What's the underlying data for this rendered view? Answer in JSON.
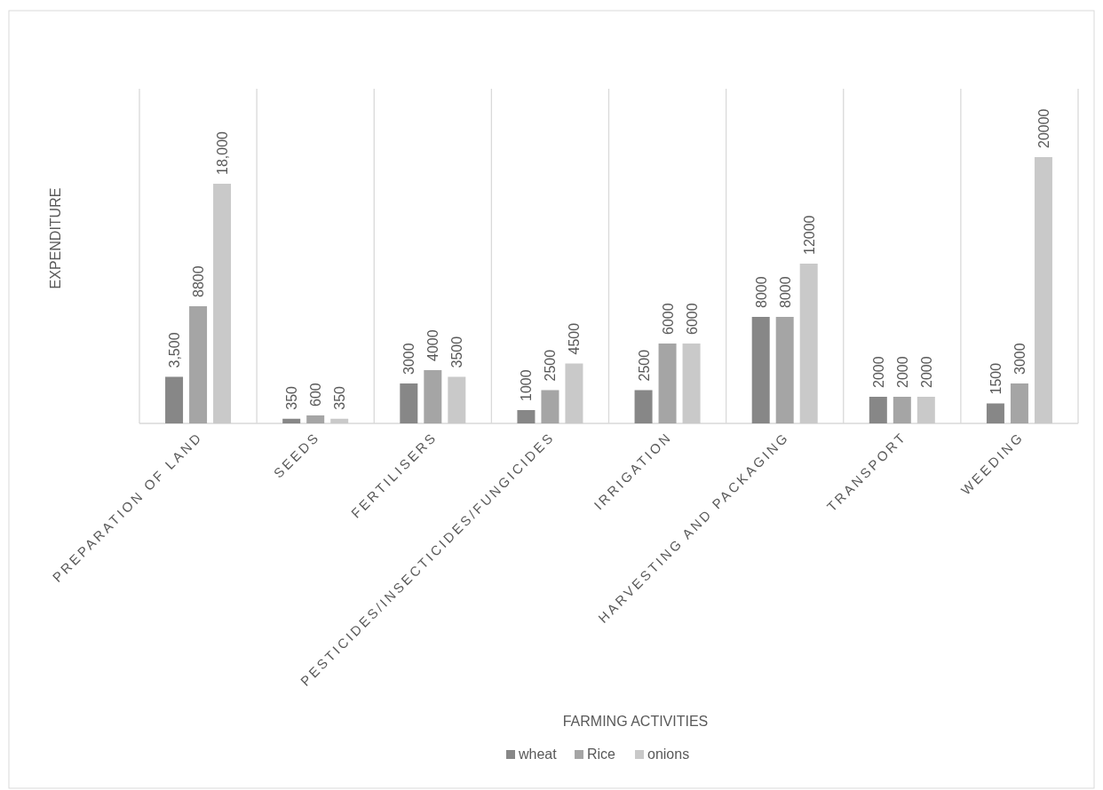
{
  "chart_data": {
    "type": "bar",
    "xlabel": "FARMING ACTIVITIES",
    "ylabel": "EXPENDITURE",
    "categories": [
      "PREPARATION OF LAND",
      "SEEDS",
      "FERTILISERS",
      "PESTICIDES/INSECTICIDES/FUNGICIDES",
      "IRRIGATION",
      "HARVESTING AND PACKAGING",
      "TRANSPORT",
      "WEEDING"
    ],
    "series": [
      {
        "name": "wheat",
        "color": "#878787",
        "values": [
          3500,
          350,
          3000,
          1000,
          2500,
          8000,
          2000,
          1500
        ],
        "value_labels": [
          "3,500",
          "350",
          "3000",
          "1000",
          "2500",
          "8000",
          "2000",
          "1500"
        ]
      },
      {
        "name": "Rice",
        "color": "#a5a5a5",
        "values": [
          8800,
          600,
          4000,
          2500,
          6000,
          8000,
          2000,
          3000
        ],
        "value_labels": [
          "8800",
          "600",
          "4000",
          "2500",
          "6000",
          "8000",
          "2000",
          "3000"
        ]
      },
      {
        "name": "onions",
        "color": "#c9c9c9",
        "values": [
          18000,
          350,
          3500,
          4500,
          6000,
          12000,
          2000,
          20000
        ],
        "value_labels": [
          "18,000",
          "350",
          "3500",
          "4500",
          "6000",
          "12000",
          "2000",
          "20000"
        ]
      }
    ],
    "grid": "x",
    "legend": "bottom",
    "tick_labels": "x"
  }
}
